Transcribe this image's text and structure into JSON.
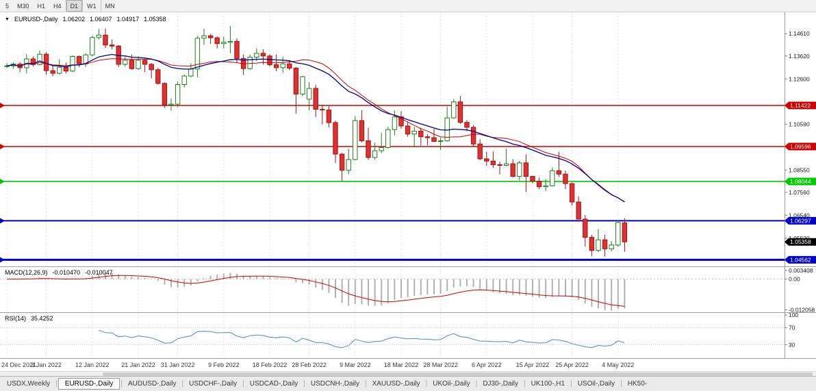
{
  "toolbar": {
    "timeframes": [
      {
        "label": "5",
        "active": false
      },
      {
        "label": "M30",
        "active": false
      },
      {
        "label": "H1",
        "active": false
      },
      {
        "label": "H4",
        "active": false
      },
      {
        "label": "D1",
        "active": true
      },
      {
        "label": "W1",
        "active": false
      },
      {
        "label": "MN",
        "active": false
      }
    ]
  },
  "chart_header": {
    "collapse_icon": "▼",
    "symbol": "EURUSD-,Daily",
    "open": "1.06202",
    "high": "1.06407",
    "low": "1.04917",
    "close": "1.05358"
  },
  "macd_header": {
    "label": "MACD(12,26,9)",
    "value_main": "-0.010470",
    "value_signal": "-0.010047"
  },
  "rsi_header": {
    "label": "RSI(14)",
    "value": "35.4252"
  },
  "price_axis": {
    "ticks": [
      "1.14610",
      "1.13620",
      "1.12600",
      "1.10590",
      "1.08550",
      "1.07560",
      "1.06540",
      "1.05520"
    ]
  },
  "tabs": [
    {
      "label": "USDX,Weekly",
      "active": false
    },
    {
      "label": "EURUSD-,Daily",
      "active": true
    },
    {
      "label": "AUDUSD-,Daily",
      "active": false
    },
    {
      "label": "USDCHF-,Daily",
      "active": false
    },
    {
      "label": "USDCAD-,Daily",
      "active": false
    },
    {
      "label": "USDCNH-,Daily",
      "active": false
    },
    {
      "label": "XAUUSD-,Daily",
      "active": false
    },
    {
      "label": "UKOil-,Daily",
      "active": false
    },
    {
      "label": "DJ30-,Daily",
      "active": false
    },
    {
      "label": "UK100-,H1",
      "active": false
    },
    {
      "label": "USOil-,Daily",
      "active": false
    },
    {
      "label": "HK50-",
      "active": false
    }
  ],
  "chart_data": {
    "type": "candlestick",
    "symbol": "EURUSD-,Daily",
    "ylim": [
      1.043,
      1.155
    ],
    "x_labels": [
      {
        "text": "24 Dec 2021",
        "i": 0
      },
      {
        "text": "3 Jan 2022",
        "i": 6
      },
      {
        "text": "12 Jan 2022",
        "i": 13
      },
      {
        "text": "21 Jan 2022",
        "i": 20
      },
      {
        "text": "31 Jan 2022",
        "i": 26
      },
      {
        "text": "9 Feb 2022",
        "i": 33
      },
      {
        "text": "18 Feb 2022",
        "i": 40
      },
      {
        "text": "28 Feb 2022",
        "i": 46
      },
      {
        "text": "9 Mar 2022",
        "i": 53
      },
      {
        "text": "18 Mar 2022",
        "i": 60
      },
      {
        "text": "28 Mar 2022",
        "i": 66
      },
      {
        "text": "6 Apr 2022",
        "i": 73
      },
      {
        "text": "15 Apr 2022",
        "i": 80
      },
      {
        "text": "25 Apr 2022",
        "i": 86
      },
      {
        "text": "4 May 2022",
        "i": 93
      }
    ],
    "candles": [
      [
        1.1318,
        1.133,
        1.1308,
        1.1318
      ],
      [
        1.1318,
        1.1334,
        1.1305,
        1.1326
      ],
      [
        1.1326,
        1.1335,
        1.129,
        1.131
      ],
      [
        1.131,
        1.137,
        1.1285,
        1.1349
      ],
      [
        1.1349,
        1.136,
        1.1315,
        1.1324
      ],
      [
        1.1324,
        1.1386,
        1.132,
        1.137
      ],
      [
        1.137,
        1.138,
        1.1279,
        1.1297
      ],
      [
        1.1297,
        1.1323,
        1.1272,
        1.1285
      ],
      [
        1.1285,
        1.1347,
        1.128,
        1.1312
      ],
      [
        1.1312,
        1.1332,
        1.1285,
        1.1295
      ],
      [
        1.1295,
        1.1365,
        1.129,
        1.136
      ],
      [
        1.136,
        1.1363,
        1.1313,
        1.1327
      ],
      [
        1.1327,
        1.1375,
        1.1314,
        1.1367
      ],
      [
        1.1367,
        1.1453,
        1.136,
        1.1444
      ],
      [
        1.1444,
        1.1482,
        1.1435,
        1.1455
      ],
      [
        1.1455,
        1.1483,
        1.1398,
        1.1411
      ],
      [
        1.1411,
        1.1435,
        1.1392,
        1.1406
      ],
      [
        1.1406,
        1.1411,
        1.1313,
        1.1325
      ],
      [
        1.1325,
        1.1358,
        1.1315,
        1.1343
      ],
      [
        1.1343,
        1.1369,
        1.1301,
        1.1306
      ],
      [
        1.1306,
        1.136,
        1.13,
        1.1343
      ],
      [
        1.1343,
        1.1349,
        1.1291,
        1.1325
      ],
      [
        1.1325,
        1.1331,
        1.1263,
        1.1301
      ],
      [
        1.1301,
        1.131,
        1.1235,
        1.124
      ],
      [
        1.124,
        1.1245,
        1.1131,
        1.1144
      ],
      [
        1.1144,
        1.1174,
        1.1119,
        1.1148
      ],
      [
        1.1148,
        1.1248,
        1.1135,
        1.1235
      ],
      [
        1.1235,
        1.128,
        1.1222,
        1.1273
      ],
      [
        1.1273,
        1.133,
        1.1267,
        1.1304
      ],
      [
        1.1304,
        1.1451,
        1.1267,
        1.1441
      ],
      [
        1.1441,
        1.1483,
        1.1411,
        1.1452
      ],
      [
        1.1452,
        1.1459,
        1.1415,
        1.1443
      ],
      [
        1.1443,
        1.1449,
        1.1396,
        1.1417
      ],
      [
        1.1417,
        1.1448,
        1.1395,
        1.1423
      ],
      [
        1.1423,
        1.1495,
        1.1374,
        1.1427
      ],
      [
        1.1427,
        1.1441,
        1.133,
        1.1351
      ],
      [
        1.1351,
        1.1369,
        1.1278,
        1.1306
      ],
      [
        1.1306,
        1.1368,
        1.1301,
        1.1357
      ],
      [
        1.1357,
        1.1395,
        1.134,
        1.1374
      ],
      [
        1.1374,
        1.1392,
        1.1324,
        1.1362
      ],
      [
        1.1362,
        1.137,
        1.1316,
        1.1323
      ],
      [
        1.1323,
        1.1369,
        1.1294,
        1.131
      ],
      [
        1.131,
        1.1359,
        1.1287,
        1.1327
      ],
      [
        1.1327,
        1.1343,
        1.1299,
        1.1308
      ],
      [
        1.1308,
        1.1313,
        1.1106,
        1.1193
      ],
      [
        1.1193,
        1.1274,
        1.1184,
        1.127
      ],
      [
        1.117,
        1.1246,
        1.1121,
        1.1218
      ],
      [
        1.1218,
        1.1234,
        1.109,
        1.1125
      ],
      [
        1.1125,
        1.1145,
        1.1058,
        1.1122
      ],
      [
        1.1122,
        1.1139,
        1.1045,
        1.1066
      ],
      [
        1.1066,
        1.1075,
        1.0886,
        1.0926
      ],
      [
        1.0926,
        1.0931,
        1.0806,
        1.0854
      ],
      [
        1.0854,
        1.095,
        1.0837,
        1.0902
      ],
      [
        1.0902,
        1.1095,
        1.0899,
        1.1075
      ],
      [
        1.1075,
        1.1121,
        1.0977,
        1.0985
      ],
      [
        1.0985,
        1.1043,
        1.09,
        1.0911
      ],
      [
        1.0911,
        1.0977,
        1.0901,
        1.0941
      ],
      [
        1.0941,
        1.102,
        1.093,
        1.0955
      ],
      [
        1.0955,
        1.1047,
        1.0951,
        1.1035
      ],
      [
        1.1035,
        1.1119,
        1.1009,
        1.1091
      ],
      [
        1.1091,
        1.1117,
        1.1039,
        1.1051
      ],
      [
        1.1051,
        1.107,
        1.1003,
        1.1015
      ],
      [
        1.1015,
        1.1047,
        1.0961,
        1.1028
      ],
      [
        1.1028,
        1.1044,
        1.0963,
        1.1003
      ],
      [
        1.1003,
        1.1014,
        1.0965,
        1.0999
      ],
      [
        1.0999,
        1.1039,
        1.098,
        1.0982
      ],
      [
        1.0982,
        1.0999,
        1.0944,
        1.0985
      ],
      [
        1.0985,
        1.1137,
        1.0982,
        1.1087
      ],
      [
        1.1087,
        1.1171,
        1.1083,
        1.1158
      ],
      [
        1.1158,
        1.1185,
        1.106,
        1.1067
      ],
      [
        1.1067,
        1.1077,
        1.1027,
        1.1045
      ],
      [
        1.1045,
        1.1055,
        1.096,
        1.0971
      ],
      [
        1.0971,
        1.0992,
        1.0899,
        1.0905
      ],
      [
        1.0905,
        1.0937,
        1.0874,
        1.0895
      ],
      [
        1.0895,
        1.0939,
        1.0864,
        1.0879
      ],
      [
        1.0879,
        1.0892,
        1.0836,
        1.0876
      ],
      [
        1.0876,
        1.095,
        1.0872,
        1.0883
      ],
      [
        1.0883,
        1.0904,
        1.0821,
        1.0827
      ],
      [
        1.0827,
        1.0896,
        1.0809,
        1.0887
      ],
      [
        1.0887,
        1.0925,
        1.0757,
        1.0827
      ],
      [
        1.0827,
        1.083,
        1.0796,
        1.0806
      ],
      [
        1.0806,
        1.0822,
        1.077,
        1.0781
      ],
      [
        1.0781,
        1.0815,
        1.0761,
        1.0785
      ],
      [
        1.0785,
        1.0867,
        1.0782,
        1.0852
      ],
      [
        1.0852,
        1.0936,
        1.0824,
        1.0837
      ],
      [
        1.0837,
        1.0852,
        1.077,
        1.0795
      ],
      [
        1.0795,
        1.08,
        1.0697,
        1.0713
      ],
      [
        1.0713,
        1.0738,
        1.0635,
        1.0637
      ],
      [
        1.0637,
        1.0655,
        1.0514,
        1.0556
      ],
      [
        1.0556,
        1.0567,
        1.0471,
        1.0498
      ],
      [
        1.0498,
        1.0593,
        1.049,
        1.0545
      ],
      [
        1.0545,
        1.0568,
        1.047,
        1.0505
      ],
      [
        1.0505,
        1.054,
        1.0493,
        1.0522
      ],
      [
        1.0522,
        1.0632,
        1.0513,
        1.0622
      ],
      [
        1.062,
        1.0641,
        1.0492,
        1.0536
      ]
    ],
    "overlays": [
      {
        "name": "ma-fast",
        "type": "sma",
        "period": 20,
        "color": "#cc0000"
      },
      {
        "name": "ma-slow",
        "type": "lwma",
        "period": 30,
        "color": "#000080"
      }
    ],
    "hlines": [
      {
        "price": 1.11422,
        "color": "#d00000",
        "width": 1.4
      },
      {
        "price": 1.09596,
        "color": "#d00000",
        "width": 1.4
      },
      {
        "price": 1.08044,
        "color": "#00cc00",
        "width": 1.6
      },
      {
        "price": 1.06297,
        "color": "#0000c8",
        "width": 2
      },
      {
        "price": 1.04562,
        "color": "#0000c8",
        "width": 3
      }
    ],
    "current_price": {
      "value": 1.05358,
      "color": "#000000"
    },
    "indicators": [
      {
        "type": "macd",
        "label": "MACD(12,26,9)",
        "fast": 12,
        "slow": 26,
        "signal": 9,
        "ylim": [
          -0.0125,
          0.0042
        ],
        "histogram_color": "#b0b0b0",
        "signal_color": "#cc0000",
        "axis_ticks": [
          {
            "text": "0.003408",
            "v": 0.003408
          },
          {
            "text": "0.00",
            "v": 0
          },
          {
            "text": "-0.012058",
            "v": -0.012058
          }
        ]
      },
      {
        "type": "rsi",
        "label": "RSI(14)",
        "period": 14,
        "ylim": [
          0,
          100
        ],
        "color": "#4a8bc2",
        "levels": [
          70,
          30
        ],
        "axis_ticks": [
          {
            "text": "100",
            "v": 100
          },
          {
            "text": "70",
            "v": 70
          },
          {
            "text": "30",
            "v": 30
          }
        ]
      }
    ]
  }
}
